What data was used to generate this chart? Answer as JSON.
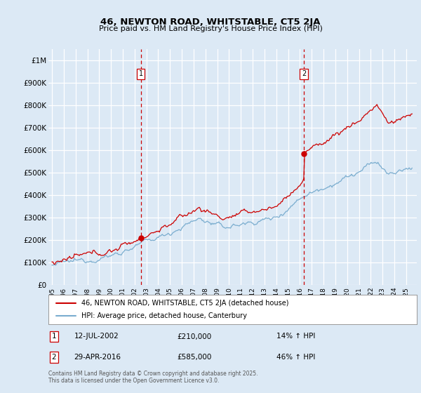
{
  "title": "46, NEWTON ROAD, WHITSTABLE, CT5 2JA",
  "subtitle": "Price paid vs. HM Land Registry's House Price Index (HPI)",
  "bg_color": "#dce9f5",
  "red_color": "#cc0000",
  "blue_color": "#7aadcf",
  "grid_color": "#ffffff",
  "ylim": [
    0,
    1050000
  ],
  "yticks": [
    0,
    100000,
    200000,
    300000,
    400000,
    500000,
    600000,
    700000,
    800000,
    900000,
    1000000
  ],
  "ytick_labels": [
    "£0",
    "£100K",
    "£200K",
    "£300K",
    "£400K",
    "£500K",
    "£600K",
    "£700K",
    "£800K",
    "£900K",
    "£1M"
  ],
  "legend_label_red": "46, NEWTON ROAD, WHITSTABLE, CT5 2JA (detached house)",
  "legend_label_blue": "HPI: Average price, detached house, Canterbury",
  "sale1_date": "12-JUL-2002",
  "sale1_price": "£210,000",
  "sale1_pct": "14% ↑ HPI",
  "sale2_date": "29-APR-2016",
  "sale2_price": "£585,000",
  "sale2_pct": "46% ↑ HPI",
  "footnote": "Contains HM Land Registry data © Crown copyright and database right 2025.\nThis data is licensed under the Open Government Licence v3.0.",
  "vline1_x": 2002.53,
  "vline2_x": 2016.33,
  "sale1_marker_y": 210000,
  "sale2_marker_y": 585000,
  "xlim_left": 1994.7,
  "xlim_right": 2025.9
}
